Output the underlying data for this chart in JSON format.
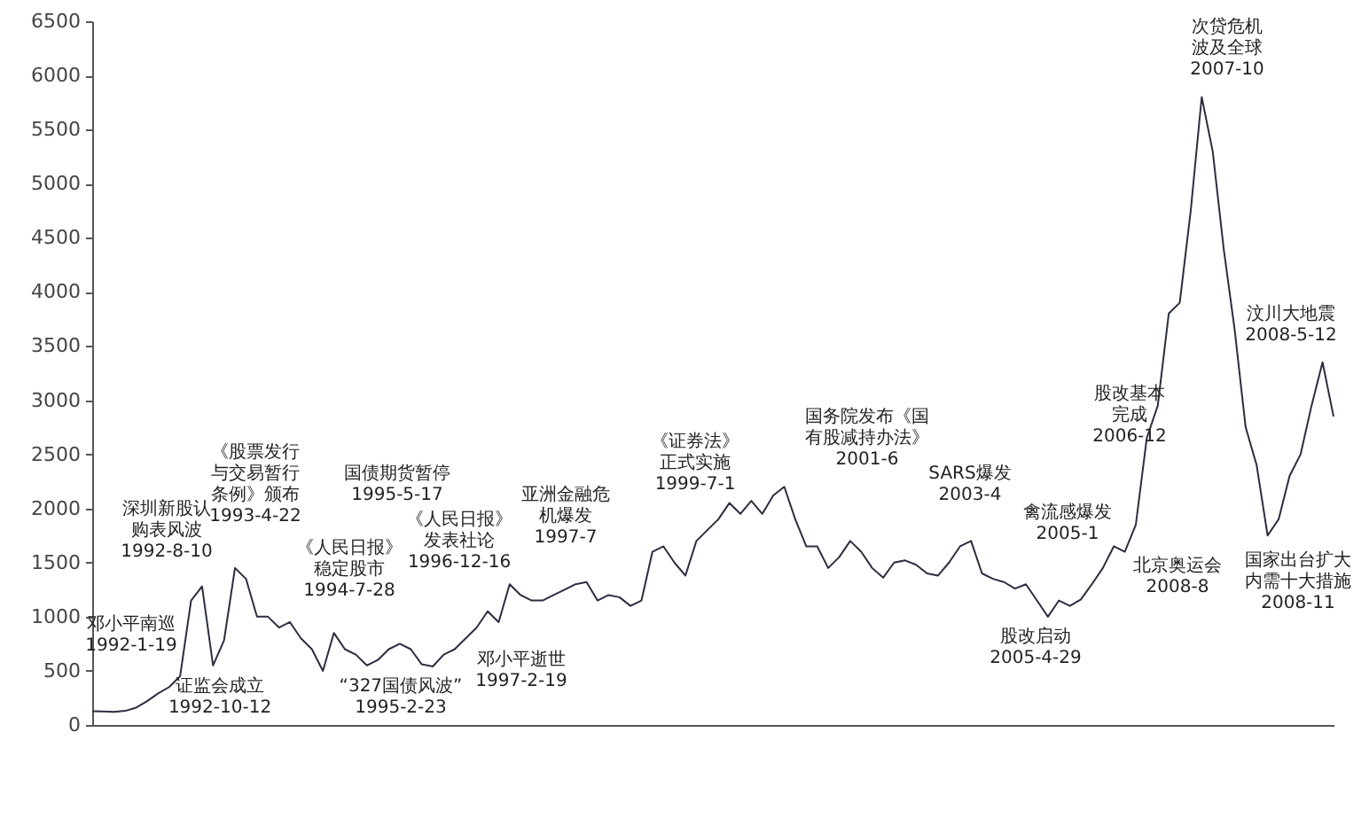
{
  "chart_data": {
    "type": "line",
    "ylim": [
      0,
      6500
    ],
    "yticks": [
      0,
      500,
      1000,
      1500,
      2000,
      2500,
      3000,
      3500,
      4000,
      4500,
      5000,
      5500,
      6000,
      6500
    ],
    "tick_labels": "y",
    "grid": false,
    "marker": "none",
    "line_style": "solid",
    "categories": [
      null,
      null,
      null,
      null,
      null,
      null,
      null,
      null,
      null,
      null,
      null,
      null,
      null,
      null,
      null,
      null,
      null,
      null,
      null,
      null,
      null,
      null,
      null,
      null,
      null,
      null,
      null,
      null,
      null,
      null,
      null,
      null,
      null,
      null,
      null,
      null,
      null,
      null,
      null,
      null,
      null,
      null,
      null,
      null,
      null,
      null,
      null,
      null,
      null,
      null,
      null,
      null,
      null,
      null,
      null,
      null,
      null,
      null,
      null,
      null,
      null,
      null,
      null,
      null,
      null,
      null,
      null,
      null,
      null,
      null,
      null,
      null,
      null,
      null,
      null,
      null,
      null,
      null,
      null,
      null,
      null,
      null,
      null,
      null,
      null,
      null,
      null,
      null,
      null,
      null,
      null,
      null,
      null,
      null,
      null,
      null,
      null,
      null,
      null,
      null,
      null,
      null,
      null,
      null,
      null,
      null,
      null,
      null,
      null,
      null,
      null,
      null,
      null,
      null
    ],
    "series": [
      {
        "color": "#2b2d42",
        "values": [
          127,
          125,
          120,
          130,
          160,
          220,
          292,
          350,
          450,
          1150,
          1280,
          550,
          780,
          1450,
          1350,
          1000,
          1000,
          900,
          950,
          800,
          700,
          500,
          850,
          700,
          650,
          550,
          600,
          700,
          750,
          700,
          560,
          540,
          650,
          700,
          800,
          900,
          1050,
          950,
          1300,
          1200,
          1150,
          1150,
          1200,
          1250,
          1300,
          1320,
          1150,
          1200,
          1180,
          1100,
          1150,
          1600,
          1650,
          1500,
          1380,
          1700,
          1800,
          1900,
          2050,
          1950,
          2070,
          1950,
          2120,
          2200,
          1900,
          1650,
          1650,
          1450,
          1550,
          1700,
          1600,
          1450,
          1360,
          1500,
          1520,
          1480,
          1400,
          1380,
          1500,
          1650,
          1700,
          1400,
          1350,
          1320,
          1260,
          1300,
          1150,
          1000,
          1150,
          1100,
          1160,
          1300,
          1450,
          1650,
          1600,
          1850,
          2650,
          2950,
          3800,
          3900,
          4750,
          5800,
          5300,
          4400,
          3650,
          2750,
          2400,
          1750,
          1900,
          2300,
          2500,
          2950,
          3350,
          2850
        ]
      }
    ],
    "annotations": [
      "邓小平南巡 1992-1-19",
      "深圳新股认购表风波 1992-8-10",
      "证监会成立 1992-10-12",
      "《股票发行与交易暂行条例》颁布 1993-4-22",
      "《人民日报》稳定股市 1994-7-28",
      "国债期货暂停 1995-5-17",
      "“327国债风波” 1995-2-23",
      "《人民日报》发表社论 1996-12-16",
      "邓小平逝世 1997-2-19",
      "亚洲金融危机爆发 1997-7",
      "《证券法》正式实施 1999-7-1",
      "国务院发布《国有股减持办法》 2001-6",
      "SARS爆发 2003-4",
      "禽流感爆发 2005-1",
      "股改启动 2005-4-29",
      "股改基本完成 2006-12",
      "次贷危机波及全球 2007-10",
      "汶川大地震 2008-5-12",
      "北京奥运会 2008-8",
      "国家出台扩大内需十大措施 2008-11"
    ]
  }
}
